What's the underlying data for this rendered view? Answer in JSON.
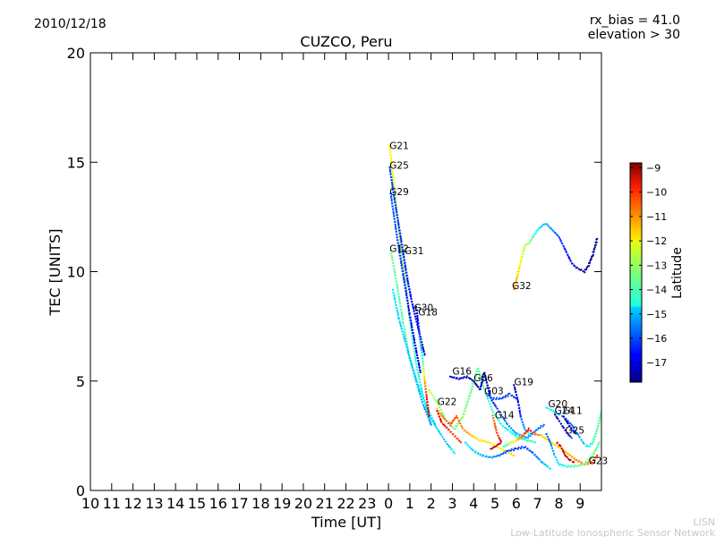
{
  "header": {
    "date": "2010/12/18",
    "rx_bias": "rx_bias = 41.0",
    "elevation": "elevation > 30"
  },
  "footer": {
    "org_short": "LISN",
    "org_long": "Low-Latitude Ionospheric Sensor Network"
  },
  "chart_data": {
    "type": "scatter",
    "title": "CUZCO, Peru",
    "xlabel": "Time [UT]",
    "ylabel": "TEC [UNITS]",
    "ylim": [
      0,
      20
    ],
    "y_ticks": [
      0,
      5,
      10,
      15,
      20
    ],
    "xlim_hours_elapsed": [
      0,
      24
    ],
    "x_tick_labels": [
      "10",
      "11",
      "12",
      "13",
      "14",
      "15",
      "16",
      "17",
      "18",
      "19",
      "20",
      "21",
      "22",
      "23",
      "0",
      "1",
      "2",
      "3",
      "4",
      "5",
      "6",
      "7",
      "8",
      "9"
    ],
    "colorbar": {
      "label": "Latitude",
      "range": [
        -17.8,
        -8.8
      ],
      "ticks": [
        -9,
        -10,
        -11,
        -12,
        -13,
        -14,
        -15,
        -16,
        -17
      ],
      "colormap": "jet"
    },
    "satellite_labels": [
      {
        "text": "G21",
        "x": 0.05,
        "y": 15.6
      },
      {
        "text": "G25",
        "x": 0.05,
        "y": 14.7
      },
      {
        "text": "G29",
        "x": 0.05,
        "y": 13.5
      },
      {
        "text": "G12",
        "x": 0.05,
        "y": 10.9
      },
      {
        "text": "G31",
        "x": 0.75,
        "y": 10.8
      },
      {
        "text": "G30",
        "x": 1.2,
        "y": 8.2
      },
      {
        "text": "G18",
        "x": 1.4,
        "y": 8.0
      },
      {
        "text": "G16",
        "x": 3.0,
        "y": 5.3
      },
      {
        "text": "G06",
        "x": 4.0,
        "y": 5.0
      },
      {
        "text": "G19",
        "x": 5.9,
        "y": 4.8
      },
      {
        "text": "G03",
        "x": 4.5,
        "y": 4.4
      },
      {
        "text": "G22",
        "x": 2.3,
        "y": 3.9
      },
      {
        "text": "G20",
        "x": 7.5,
        "y": 3.8
      },
      {
        "text": "G24",
        "x": 7.8,
        "y": 3.5
      },
      {
        "text": "G11",
        "x": 8.2,
        "y": 3.5
      },
      {
        "text": "G14",
        "x": 5.0,
        "y": 3.3
      },
      {
        "text": "G32",
        "x": 5.8,
        "y": 9.2
      },
      {
        "text": "G25",
        "x": 8.3,
        "y": 2.6
      },
      {
        "text": "G23",
        "x": 9.4,
        "y": 1.2
      }
    ],
    "series": [
      {
        "points": [
          [
            0.05,
            15.8,
            -12
          ],
          [
            0.25,
            14.0,
            -12.4
          ],
          [
            0.5,
            11.8,
            -12.8
          ],
          [
            0.8,
            9.6,
            -13.2
          ],
          [
            1.0,
            7.8,
            -13.6
          ],
          [
            1.3,
            5.8,
            -14
          ],
          [
            1.6,
            4.4,
            -14.4
          ],
          [
            1.9,
            3.4,
            -14.6
          ],
          [
            2.3,
            2.8,
            -14.8
          ],
          [
            2.7,
            2.2,
            -15
          ],
          [
            3.1,
            1.7,
            -14.6
          ]
        ]
      },
      {
        "points": [
          [
            0.05,
            14.8,
            -16
          ],
          [
            0.3,
            13.2,
            -16.2
          ],
          [
            0.6,
            11.4,
            -16.4
          ],
          [
            0.9,
            9.6,
            -16.6
          ],
          [
            1.1,
            8.6,
            -16.8
          ],
          [
            1.3,
            7.8,
            -17
          ],
          [
            1.5,
            7.0,
            -17.2
          ],
          [
            1.7,
            6.2,
            -17.4
          ]
        ]
      },
      {
        "points": [
          [
            0.1,
            13.6,
            -15.8
          ],
          [
            0.4,
            11.6,
            -16
          ],
          [
            0.7,
            9.8,
            -16.3
          ],
          [
            1.0,
            8.0,
            -16.6
          ],
          [
            1.3,
            6.4,
            -16.8
          ],
          [
            1.5,
            5.4,
            -17
          ]
        ]
      },
      {
        "points": [
          [
            0.1,
            11.0,
            -13.4
          ],
          [
            0.4,
            9.4,
            -13.6
          ],
          [
            0.7,
            7.6,
            -13.8
          ],
          [
            1.0,
            6.0,
            -14
          ],
          [
            1.4,
            4.8,
            -14.2
          ],
          [
            1.8,
            3.8,
            -14.6
          ],
          [
            2.2,
            3.0,
            -14.8
          ]
        ]
      },
      {
        "points": [
          [
            0.2,
            9.2,
            -14.6
          ],
          [
            0.5,
            7.8,
            -14.8
          ],
          [
            0.9,
            6.4,
            -14.9
          ],
          [
            1.3,
            5.0,
            -15
          ],
          [
            1.6,
            4.0,
            -15.2
          ],
          [
            2.0,
            3.0,
            -15.4
          ]
        ]
      },
      {
        "points": [
          [
            1.3,
            8.4,
            -17.2
          ],
          [
            1.4,
            7.6,
            -16.6
          ],
          [
            1.5,
            6.8,
            -15.6
          ],
          [
            1.6,
            6.0,
            -14
          ],
          [
            1.7,
            5.0,
            -11.5
          ],
          [
            1.8,
            4.2,
            -10
          ],
          [
            1.9,
            3.4,
            -9.4
          ]
        ]
      },
      {
        "points": [
          [
            1.9,
            4.6,
            -12.8
          ],
          [
            2.3,
            4.0,
            -13
          ],
          [
            2.7,
            3.2,
            -13.4
          ],
          [
            3.1,
            2.8,
            -13.4
          ],
          [
            3.5,
            3.4,
            -13.2
          ],
          [
            3.9,
            4.6,
            -13.4
          ],
          [
            4.2,
            5.6,
            -13.6
          ],
          [
            4.5,
            4.6,
            -13.8
          ],
          [
            4.9,
            3.6,
            -14
          ],
          [
            5.3,
            3.0,
            -14.2
          ],
          [
            5.7,
            2.7,
            -14.4
          ],
          [
            6.1,
            2.4,
            -14.2
          ],
          [
            6.5,
            2.3,
            -14
          ],
          [
            6.9,
            2.2,
            -13.8
          ]
        ]
      },
      {
        "points": [
          [
            2.9,
            5.2,
            -17.2
          ],
          [
            3.3,
            5.1,
            -17
          ],
          [
            3.7,
            5.2,
            -17.2
          ],
          [
            4.0,
            5.0,
            -17.4
          ],
          [
            4.3,
            4.6,
            -17.4
          ],
          [
            4.5,
            5.4,
            -17.2
          ],
          [
            4.8,
            4.2,
            -16.6
          ],
          [
            5.2,
            3.6,
            -16
          ],
          [
            5.6,
            3.0,
            -15.4
          ],
          [
            6.0,
            2.6,
            -15.2
          ],
          [
            6.5,
            2.4,
            -15.2
          ],
          [
            7.0,
            2.8,
            -15.6
          ],
          [
            7.3,
            3.0,
            -15.8
          ]
        ]
      },
      {
        "points": [
          [
            5.9,
            4.8,
            -17.5
          ],
          [
            6.0,
            4.4,
            -17.3
          ],
          [
            6.1,
            4.0,
            -17.1
          ],
          [
            6.2,
            3.4,
            -16.2
          ],
          [
            6.4,
            2.8,
            -15
          ],
          [
            6.6,
            2.6,
            -14.2
          ]
        ]
      },
      {
        "points": [
          [
            4.6,
            4.4,
            -15.8
          ],
          [
            4.9,
            4.2,
            -15.8
          ],
          [
            5.3,
            4.2,
            -16
          ],
          [
            5.7,
            4.4,
            -16.2
          ],
          [
            6.0,
            4.2,
            -16.2
          ]
        ]
      },
      {
        "points": [
          [
            2.3,
            3.7,
            -11.6
          ],
          [
            2.6,
            3.3,
            -11
          ],
          [
            2.9,
            3.0,
            -10.6
          ],
          [
            3.2,
            3.4,
            -10.8
          ],
          [
            3.5,
            2.8,
            -11.2
          ],
          [
            3.9,
            2.5,
            -11.6
          ],
          [
            4.3,
            2.3,
            -12
          ],
          [
            4.7,
            2.2,
            -12
          ],
          [
            5.1,
            2.0,
            -12.2
          ],
          [
            5.5,
            1.8,
            -12
          ],
          [
            5.9,
            1.6,
            -11.8
          ]
        ]
      },
      {
        "points": [
          [
            2.3,
            3.6,
            -9.5
          ],
          [
            2.5,
            3.1,
            -9.8
          ],
          [
            2.8,
            2.8,
            -10.2
          ],
          [
            3.1,
            2.5,
            -10.4
          ],
          [
            3.4,
            2.2,
            -10.6
          ]
        ]
      },
      {
        "points": [
          [
            4.9,
            3.4,
            -11
          ],
          [
            5.1,
            2.6,
            -10.4
          ],
          [
            5.3,
            2.2,
            -9.6
          ],
          [
            5.0,
            2.0,
            -9.2
          ],
          [
            4.8,
            1.9,
            -9.2
          ]
        ]
      },
      {
        "points": [
          [
            5.4,
            2.0,
            -14
          ],
          [
            5.8,
            2.2,
            -12.6
          ],
          [
            6.2,
            2.4,
            -11.2
          ],
          [
            6.6,
            2.8,
            -9.6
          ],
          [
            6.8,
            2.6,
            -10.6
          ],
          [
            7.2,
            2.5,
            -11.6
          ],
          [
            7.6,
            2.2,
            -12
          ],
          [
            8.0,
            2.0,
            -11.8
          ],
          [
            8.4,
            1.7,
            -11.6
          ],
          [
            8.8,
            1.4,
            -11.2
          ],
          [
            9.2,
            1.2,
            -11
          ],
          [
            9.6,
            1.3,
            -10.6
          ],
          [
            9.8,
            1.6,
            -10.2
          ]
        ]
      },
      {
        "points": [
          [
            5.9,
            9.2,
            -11
          ],
          [
            6.0,
            9.6,
            -11.5
          ],
          [
            6.2,
            10.4,
            -12.2
          ],
          [
            6.4,
            11.2,
            -12.8
          ],
          [
            6.6,
            11.3,
            -13.2
          ],
          [
            6.8,
            11.6,
            -13.8
          ],
          [
            7.0,
            11.9,
            -14.4
          ],
          [
            7.2,
            12.1,
            -14.8
          ],
          [
            7.4,
            12.2,
            -15
          ],
          [
            7.6,
            12.0,
            -15.2
          ],
          [
            7.8,
            11.8,
            -15.6
          ],
          [
            8.0,
            11.6,
            -16
          ],
          [
            8.2,
            11.2,
            -16.3
          ],
          [
            8.4,
            10.8,
            -16.6
          ],
          [
            8.6,
            10.4,
            -16.9
          ],
          [
            8.8,
            10.2,
            -17.2
          ],
          [
            9.0,
            10.1,
            -17.4
          ],
          [
            9.2,
            10.0,
            -17.6
          ],
          [
            9.4,
            10.3,
            -17.6
          ],
          [
            9.6,
            10.8,
            -17.6
          ],
          [
            9.8,
            11.5,
            -17.6
          ]
        ]
      },
      {
        "points": [
          [
            7.4,
            3.8,
            -14.2
          ],
          [
            7.6,
            3.7,
            -14.4
          ],
          [
            7.8,
            3.6,
            -14.8
          ],
          [
            8.0,
            3.5,
            -15.2
          ],
          [
            8.2,
            3.4,
            -15.6
          ],
          [
            8.4,
            3.2,
            -15.8
          ],
          [
            8.6,
            3.0,
            -15.8
          ],
          [
            8.8,
            2.7,
            -15.6
          ],
          [
            9.0,
            2.4,
            -15.2
          ],
          [
            9.2,
            2.1,
            -14.8
          ],
          [
            9.4,
            2.0,
            -14.4
          ],
          [
            9.6,
            2.2,
            -14
          ],
          [
            9.8,
            2.8,
            -13.6
          ],
          [
            10.0,
            3.6,
            -13.4
          ]
        ]
      },
      {
        "points": [
          [
            7.8,
            3.5,
            -17.4
          ],
          [
            8.0,
            3.2,
            -17.4
          ],
          [
            8.2,
            2.9,
            -17.2
          ],
          [
            8.4,
            2.6,
            -16.8
          ],
          [
            8.6,
            2.4,
            -16
          ]
        ]
      },
      {
        "points": [
          [
            8.2,
            3.4,
            -17.6
          ],
          [
            8.4,
            3.1,
            -17.4
          ],
          [
            8.6,
            2.8,
            -17
          ],
          [
            8.8,
            2.6,
            -16.4
          ]
        ]
      },
      {
        "points": [
          [
            7.4,
            2.6,
            -16
          ],
          [
            7.6,
            2.2,
            -15.6
          ],
          [
            7.8,
            1.6,
            -15
          ],
          [
            8.0,
            1.2,
            -14.6
          ],
          [
            8.4,
            1.1,
            -14
          ],
          [
            8.8,
            1.1,
            -13.6
          ],
          [
            9.2,
            1.2,
            -13.2
          ],
          [
            9.6,
            1.6,
            -13.4
          ],
          [
            9.9,
            2.2,
            -13.6
          ]
        ]
      },
      {
        "points": [
          [
            7.9,
            2.2,
            -10
          ],
          [
            8.1,
            2.0,
            -9.6
          ],
          [
            8.3,
            1.6,
            -9.6
          ],
          [
            8.5,
            1.4,
            -9.4
          ],
          [
            8.7,
            1.3,
            -9.6
          ]
        ]
      },
      {
        "points": [
          [
            3.6,
            2.2,
            -14.6
          ],
          [
            4.0,
            1.8,
            -14.8
          ],
          [
            4.4,
            1.6,
            -15
          ],
          [
            4.8,
            1.5,
            -15.2
          ],
          [
            5.2,
            1.6,
            -15.6
          ],
          [
            5.6,
            1.8,
            -16
          ],
          [
            6.0,
            1.9,
            -16.2
          ],
          [
            6.4,
            2.0,
            -16
          ],
          [
            6.8,
            1.7,
            -15.8
          ],
          [
            7.2,
            1.3,
            -15.2
          ],
          [
            7.6,
            1.0,
            -14.6
          ]
        ]
      }
    ]
  }
}
